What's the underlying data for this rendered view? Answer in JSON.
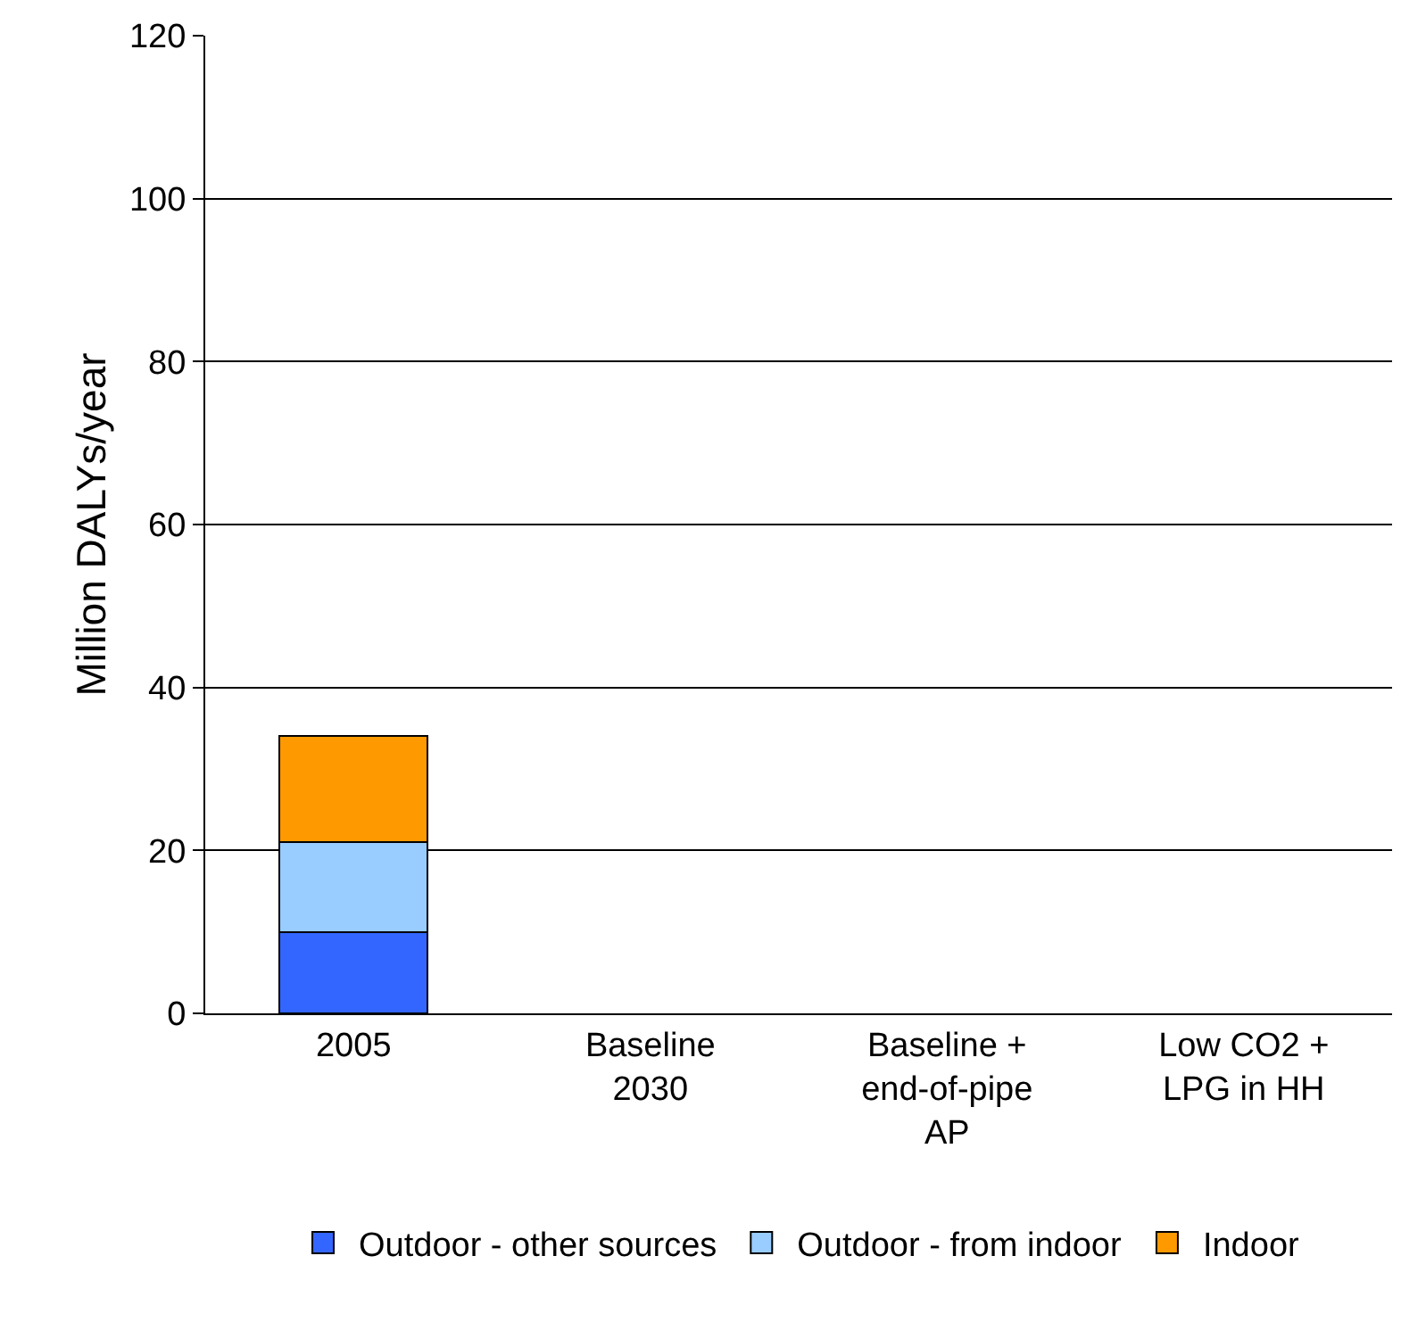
{
  "chart_data": {
    "type": "bar",
    "stacked": true,
    "ylabel": "Million DALYs/year",
    "categories": [
      "2005",
      "Baseline 2030",
      "Baseline + end-of-pipe AP",
      "Low CO2 + LPG in HH"
    ],
    "series": [
      {
        "name": "Outdoor - other sources",
        "color": "#3366ff",
        "values": [
          10,
          null,
          null,
          null
        ]
      },
      {
        "name": "Outdoor - from indoor",
        "color": "#99ccff",
        "values": [
          11,
          null,
          null,
          null
        ]
      },
      {
        "name": "Indoor",
        "color": "#ff9900",
        "values": [
          13,
          null,
          null,
          null
        ]
      }
    ],
    "ylim": [
      0,
      120
    ],
    "yticks": [
      0,
      20,
      40,
      60,
      80,
      100,
      120
    ],
    "grid": "y",
    "legend": "bottom"
  }
}
